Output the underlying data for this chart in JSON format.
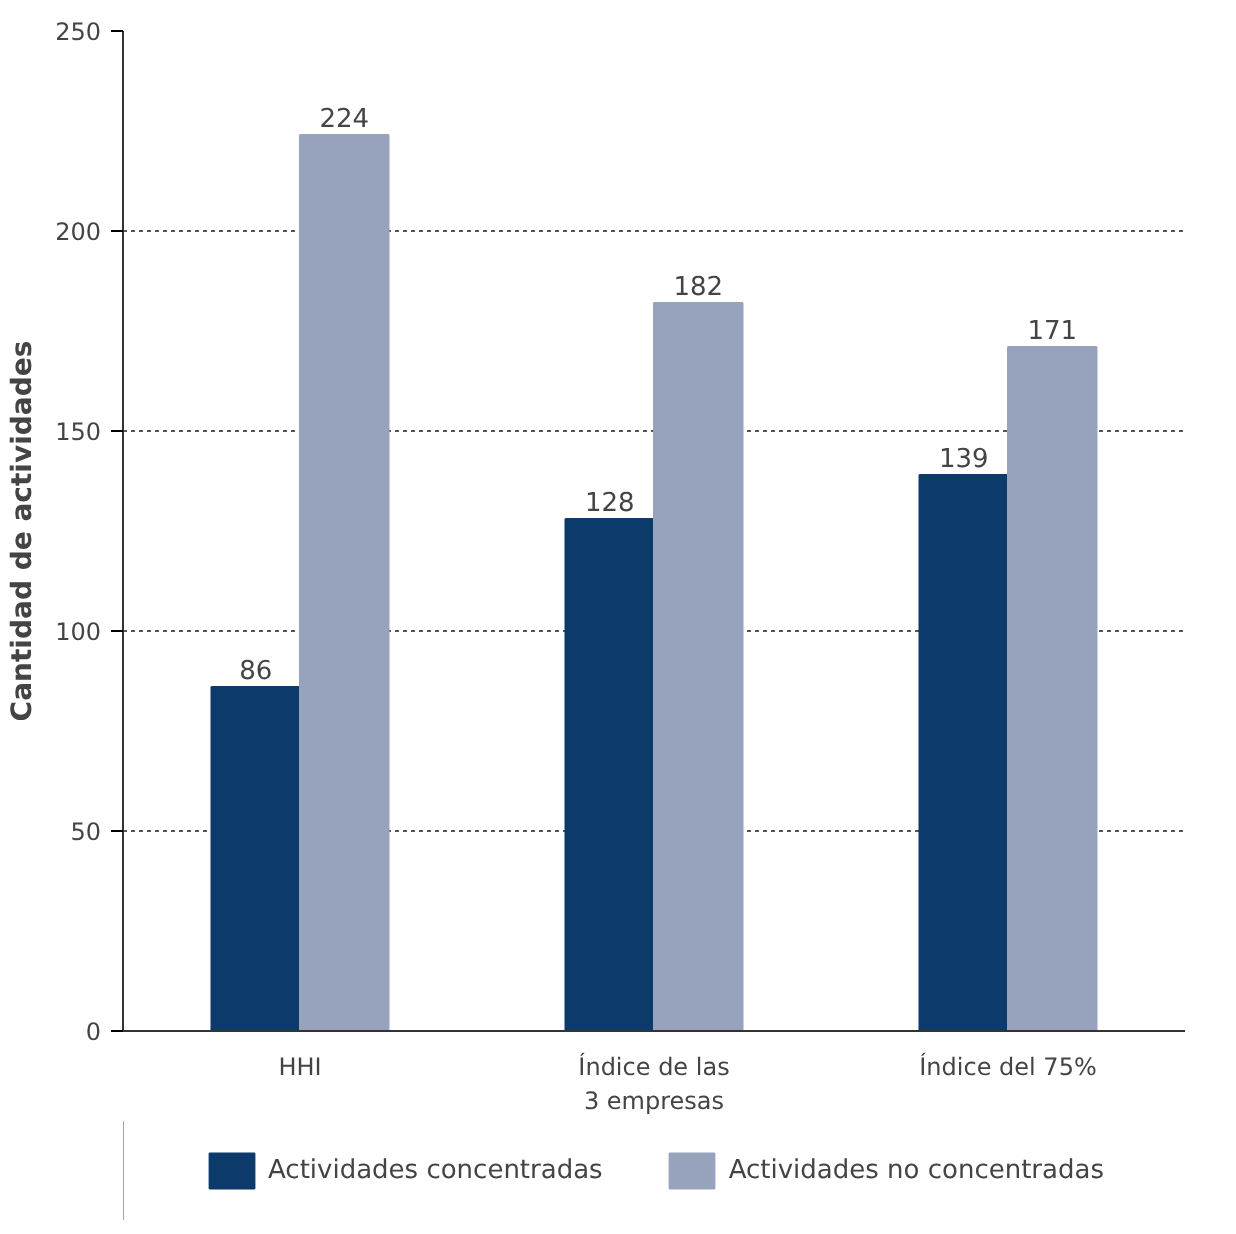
{
  "chart_data": {
    "type": "bar",
    "ylabel": "Cantidad de actividades",
    "categories": [
      "HHI",
      "Índice de las\n3 empresas",
      "Índice del 75%"
    ],
    "series": [
      {
        "name": "Actividades concentradas",
        "color": "#0b3a6b",
        "values": [
          86,
          128,
          139
        ]
      },
      {
        "name": "Actividades no concentradas",
        "color": "#97a3bd",
        "values": [
          224,
          182,
          171
        ]
      }
    ],
    "ylim": [
      0,
      250
    ],
    "yticks": [
      0,
      50,
      100,
      150,
      200,
      250
    ],
    "grid": "y",
    "legend": "bottom",
    "data_labels": true
  }
}
